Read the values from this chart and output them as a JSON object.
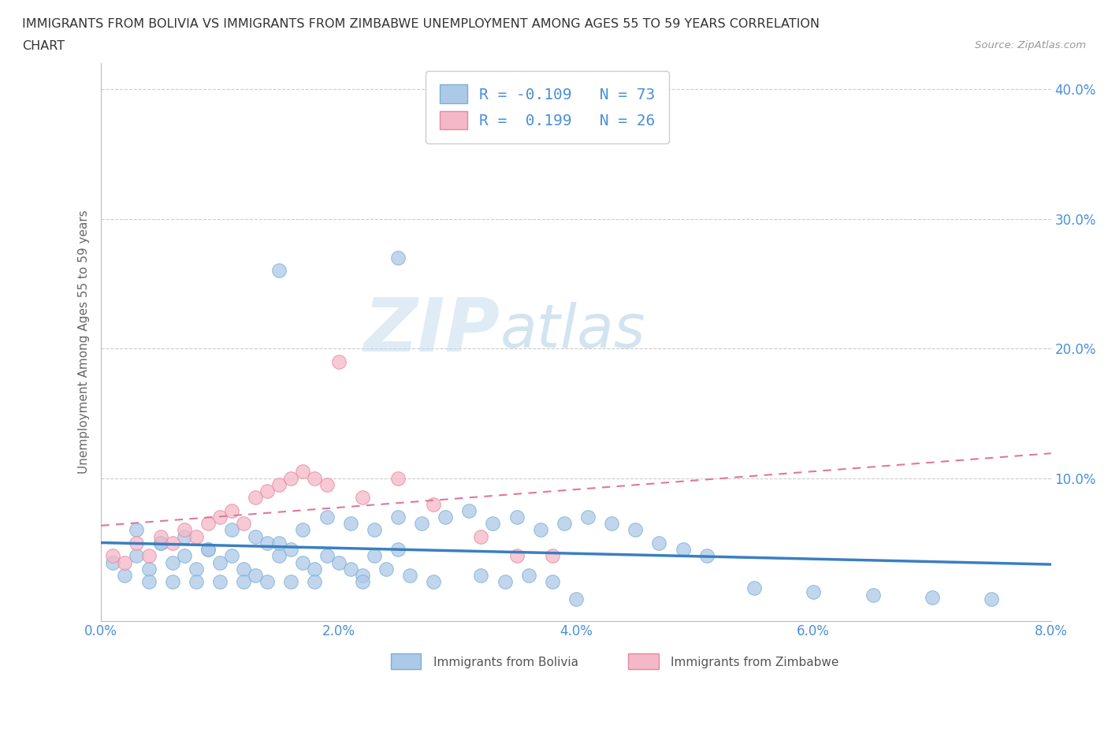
{
  "title_line1": "IMMIGRANTS FROM BOLIVIA VS IMMIGRANTS FROM ZIMBABWE UNEMPLOYMENT AMONG AGES 55 TO 59 YEARS CORRELATION",
  "title_line2": "CHART",
  "source_text": "Source: ZipAtlas.com",
  "ylabel": "Unemployment Among Ages 55 to 59 years",
  "xlim": [
    0.0,
    0.08
  ],
  "ylim": [
    -0.01,
    0.42
  ],
  "xticks": [
    0.0,
    0.02,
    0.04,
    0.06,
    0.08
  ],
  "xtick_labels": [
    "0.0%",
    "2.0%",
    "4.0%",
    "6.0%",
    "8.0%"
  ],
  "yticks": [
    0.0,
    0.1,
    0.2,
    0.3,
    0.4
  ],
  "ytick_labels": [
    "",
    "10.0%",
    "20.0%",
    "30.0%",
    "40.0%"
  ],
  "bolivia_color": "#adc9e8",
  "bolivia_edge": "#7aafd4",
  "zimbabwe_color": "#f4b8c8",
  "zimbabwe_edge": "#e888a0",
  "line_bolivia_color": "#3a7fc1",
  "line_zimbabwe_color": "#e07898",
  "R_bolivia": -0.109,
  "N_bolivia": 73,
  "R_zimbabwe": 0.199,
  "N_zimbabwe": 26,
  "legend_label_bolivia": "Immigrants from Bolivia",
  "legend_label_zimbabwe": "Immigrants from Zimbabwe",
  "watermark_zip": "ZIP",
  "watermark_atlas": "atlas",
  "bolivia_x": [
    0.001,
    0.002,
    0.003,
    0.004,
    0.005,
    0.006,
    0.007,
    0.008,
    0.009,
    0.01,
    0.011,
    0.012,
    0.013,
    0.014,
    0.015,
    0.016,
    0.017,
    0.018,
    0.019,
    0.02,
    0.021,
    0.022,
    0.023,
    0.024,
    0.025,
    0.003,
    0.005,
    0.007,
    0.009,
    0.011,
    0.013,
    0.015,
    0.017,
    0.019,
    0.021,
    0.023,
    0.025,
    0.027,
    0.029,
    0.031,
    0.033,
    0.035,
    0.037,
    0.039,
    0.041,
    0.043,
    0.045,
    0.047,
    0.049,
    0.051,
    0.004,
    0.006,
    0.008,
    0.01,
    0.012,
    0.014,
    0.016,
    0.018,
    0.022,
    0.026,
    0.028,
    0.032,
    0.034,
    0.036,
    0.038,
    0.04,
    0.055,
    0.06,
    0.065,
    0.07,
    0.075,
    0.025,
    0.015
  ],
  "bolivia_y": [
    0.035,
    0.025,
    0.04,
    0.03,
    0.05,
    0.035,
    0.04,
    0.03,
    0.045,
    0.035,
    0.04,
    0.03,
    0.025,
    0.05,
    0.04,
    0.045,
    0.035,
    0.03,
    0.04,
    0.035,
    0.03,
    0.025,
    0.04,
    0.03,
    0.045,
    0.06,
    0.05,
    0.055,
    0.045,
    0.06,
    0.055,
    0.05,
    0.06,
    0.07,
    0.065,
    0.06,
    0.07,
    0.065,
    0.07,
    0.075,
    0.065,
    0.07,
    0.06,
    0.065,
    0.07,
    0.065,
    0.06,
    0.05,
    0.045,
    0.04,
    0.02,
    0.02,
    0.02,
    0.02,
    0.02,
    0.02,
    0.02,
    0.02,
    0.02,
    0.025,
    0.02,
    0.025,
    0.02,
    0.025,
    0.02,
    0.007,
    0.015,
    0.012,
    0.01,
    0.008,
    0.007,
    0.27,
    0.26
  ],
  "zimbabwe_x": [
    0.001,
    0.002,
    0.003,
    0.004,
    0.005,
    0.006,
    0.007,
    0.008,
    0.009,
    0.01,
    0.011,
    0.012,
    0.013,
    0.014,
    0.015,
    0.016,
    0.017,
    0.018,
    0.019,
    0.02,
    0.022,
    0.025,
    0.028,
    0.032,
    0.035,
    0.038
  ],
  "zimbabwe_y": [
    0.04,
    0.035,
    0.05,
    0.04,
    0.055,
    0.05,
    0.06,
    0.055,
    0.065,
    0.07,
    0.075,
    0.065,
    0.085,
    0.09,
    0.095,
    0.1,
    0.105,
    0.1,
    0.095,
    0.19,
    0.085,
    0.1,
    0.08,
    0.055,
    0.04,
    0.04
  ]
}
